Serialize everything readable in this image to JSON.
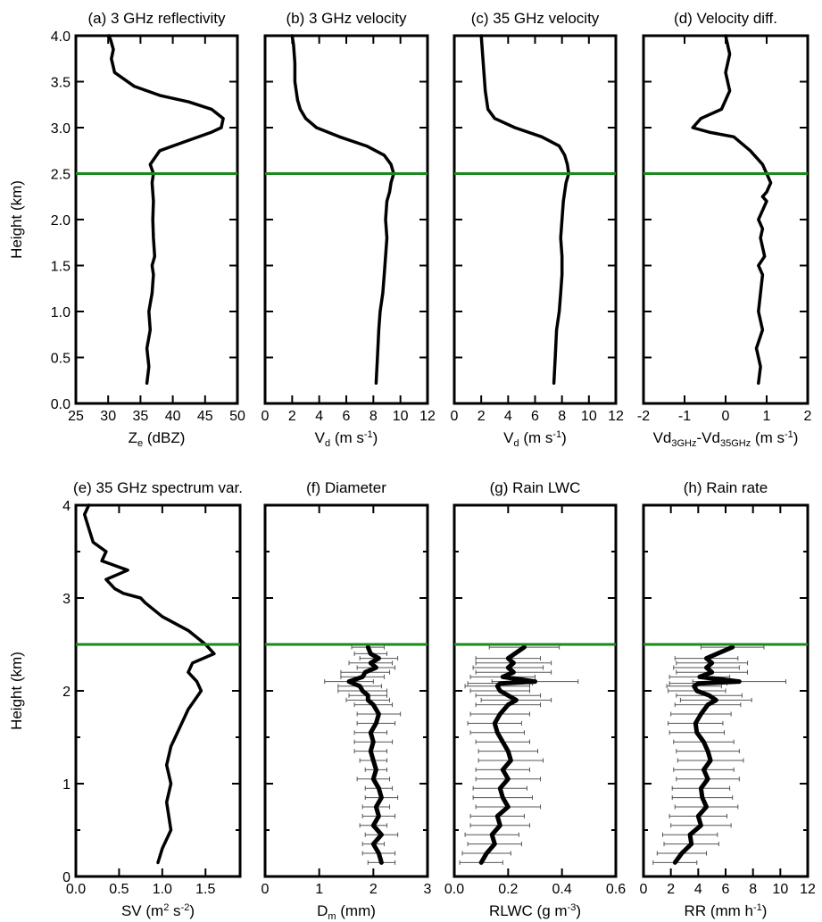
{
  "figure": {
    "ref_height_km": 2.5,
    "ref_line_color": "#1a8a1a",
    "profile_color": "#000000"
  },
  "chart_data": [
    {
      "panel": "a",
      "type": "line",
      "title": "(a) 3 GHz  reflectivity",
      "xlabel_parts": [
        {
          "t": "Z"
        },
        {
          "t": "e",
          "s": "sub"
        },
        {
          "t": " (dBZ)"
        }
      ],
      "ylabel": "Height (km)",
      "xlim": [
        25,
        50
      ],
      "ylim": [
        0,
        4
      ],
      "xticks": [
        25,
        30,
        35,
        40,
        45,
        50
      ],
      "xtick_labels": [
        "25",
        "30",
        "35",
        "40",
        "45",
        "50"
      ],
      "yticks": [
        0,
        0.5,
        1.0,
        1.5,
        2.0,
        2.5,
        3.0,
        3.5,
        4.0
      ],
      "ytick_labels": [
        "0.0",
        "0.5",
        "1.0",
        "1.5",
        "2.0",
        "2.5",
        "3.0",
        "3.5",
        "4.0"
      ],
      "series": [
        {
          "x": [
            36.0,
            36.3,
            36.0,
            36.5,
            36.3,
            36.8,
            37.0,
            36.8,
            37.2,
            37.0,
            36.9,
            37.0,
            36.8,
            37.0,
            36.5,
            38.0,
            42.0,
            46.0,
            47.5,
            47.8,
            46.0,
            42.5,
            38.0,
            34.0,
            31.0,
            30.5,
            30.8,
            30.4,
            30.1
          ],
          "y": [
            0.22,
            0.4,
            0.6,
            0.8,
            1.0,
            1.2,
            1.4,
            1.5,
            1.6,
            1.8,
            2.0,
            2.2,
            2.4,
            2.5,
            2.6,
            2.75,
            2.85,
            2.95,
            3.0,
            3.1,
            3.2,
            3.28,
            3.35,
            3.45,
            3.6,
            3.75,
            3.85,
            3.95,
            4.0
          ]
        }
      ]
    },
    {
      "panel": "b",
      "type": "line",
      "title": "(b) 3 GHz velocity",
      "xlabel_parts": [
        {
          "t": "V"
        },
        {
          "t": "d",
          "s": "sub"
        },
        {
          "t": " (m s"
        },
        {
          "t": "-1",
          "s": "sup"
        },
        {
          "t": ")"
        }
      ],
      "xlim": [
        0,
        12
      ],
      "ylim": [
        0,
        4
      ],
      "xticks": [
        0,
        2,
        4,
        6,
        8,
        10,
        12
      ],
      "xtick_labels": [
        "0",
        "2",
        "4",
        "6",
        "8",
        "10",
        "12"
      ],
      "yticks": [
        0,
        0.5,
        1.0,
        1.5,
        2.0,
        2.5,
        3.0,
        3.5,
        4.0
      ],
      "series": [
        {
          "x": [
            8.2,
            8.3,
            8.4,
            8.5,
            8.7,
            8.8,
            8.9,
            9.0,
            8.9,
            9.0,
            9.2,
            9.3,
            9.5,
            9.3,
            8.8,
            7.5,
            5.5,
            3.8,
            3.0,
            2.6,
            2.4,
            2.2,
            2.2,
            2.1,
            2.0
          ],
          "y": [
            0.22,
            0.5,
            0.8,
            1.0,
            1.2,
            1.4,
            1.6,
            1.8,
            2.0,
            2.2,
            2.3,
            2.4,
            2.5,
            2.6,
            2.7,
            2.8,
            2.9,
            3.0,
            3.1,
            3.2,
            3.3,
            3.5,
            3.7,
            3.9,
            4.0
          ]
        }
      ]
    },
    {
      "panel": "c",
      "type": "line",
      "title": "(c) 35 GHz velocity",
      "xlabel_parts": [
        {
          "t": "V"
        },
        {
          "t": "d",
          "s": "sub"
        },
        {
          "t": " (m s"
        },
        {
          "t": "-1",
          "s": "sup"
        },
        {
          "t": ")"
        }
      ],
      "xlim": [
        0,
        12
      ],
      "ylim": [
        0,
        4
      ],
      "xticks": [
        0,
        2,
        4,
        6,
        8,
        10,
        12
      ],
      "xtick_labels": [
        "0",
        "2",
        "4",
        "6",
        "8",
        "10",
        "12"
      ],
      "yticks": [
        0,
        0.5,
        1.0,
        1.5,
        2.0,
        2.5,
        3.0,
        3.5,
        4.0
      ],
      "series": [
        {
          "x": [
            7.4,
            7.5,
            7.6,
            7.8,
            7.9,
            8.0,
            8.0,
            7.9,
            8.0,
            8.1,
            8.3,
            8.5,
            8.4,
            8.2,
            7.8,
            6.5,
            4.5,
            3.0,
            2.5,
            2.3,
            2.2,
            2.1,
            2.0
          ],
          "y": [
            0.22,
            0.5,
            0.8,
            1.0,
            1.2,
            1.4,
            1.6,
            1.8,
            2.0,
            2.2,
            2.4,
            2.5,
            2.6,
            2.7,
            2.8,
            2.9,
            3.0,
            3.1,
            3.2,
            3.4,
            3.6,
            3.8,
            4.0
          ]
        }
      ]
    },
    {
      "panel": "d",
      "type": "line",
      "title": "(d) Velocity diff.",
      "xlabel_parts": [
        {
          "t": "Vd"
        },
        {
          "t": "3GHz",
          "s": "sub"
        },
        {
          "t": "-Vd"
        },
        {
          "t": "35GHz",
          "s": "sub"
        },
        {
          "t": " (m s"
        },
        {
          "t": "-1",
          "s": "sup"
        },
        {
          "t": ")"
        }
      ],
      "xlim": [
        -2,
        2
      ],
      "ylim": [
        0,
        4
      ],
      "xticks": [
        -2,
        -1,
        0,
        1,
        2
      ],
      "xtick_labels": [
        "-2",
        "-1",
        "0",
        "1",
        "2"
      ],
      "yticks": [
        0,
        0.5,
        1.0,
        1.5,
        2.0,
        2.5,
        3.0,
        3.5,
        4.0
      ],
      "series": [
        {
          "x": [
            0.8,
            0.85,
            0.75,
            0.9,
            0.8,
            0.85,
            0.9,
            0.8,
            0.95,
            0.85,
            0.9,
            0.8,
            0.9,
            1.0,
            0.9,
            1.0,
            1.1,
            1.0,
            0.9,
            0.6,
            0.2,
            -0.4,
            -0.8,
            -0.6,
            -0.1,
            0.1,
            0.0,
            0.1,
            0.0
          ],
          "y": [
            0.22,
            0.4,
            0.6,
            0.8,
            1.0,
            1.2,
            1.4,
            1.5,
            1.6,
            1.8,
            1.9,
            2.0,
            2.1,
            2.2,
            2.25,
            2.3,
            2.4,
            2.5,
            2.6,
            2.75,
            2.9,
            2.95,
            3.0,
            3.1,
            3.2,
            3.4,
            3.6,
            3.8,
            4.0
          ]
        }
      ]
    },
    {
      "panel": "e",
      "type": "line",
      "title": "(e) 35 GHz  spectrum var.",
      "xlabel_parts": [
        {
          "t": "SV (m"
        },
        {
          "t": "2",
          "s": "sup"
        },
        {
          "t": " s"
        },
        {
          "t": "-2",
          "s": "sup"
        },
        {
          "t": ")"
        }
      ],
      "ylabel": "Height (km)",
      "xlim": [
        0,
        1.9
      ],
      "ylim": [
        0,
        4
      ],
      "xticks": [
        0,
        0.5,
        1.0,
        1.5
      ],
      "xtick_labels": [
        "0.0",
        "0.5",
        "1.0",
        "1.5"
      ],
      "yticks": [
        0,
        1,
        2,
        3,
        4
      ],
      "ytick_labels": [
        "0",
        "1",
        "2",
        "3",
        "4"
      ],
      "yminor": [
        0.5,
        1.5,
        2.5,
        3.5
      ],
      "series": [
        {
          "x": [
            0.95,
            1.0,
            1.1,
            1.05,
            1.1,
            1.05,
            1.1,
            1.2,
            1.3,
            1.45,
            1.4,
            1.3,
            1.35,
            1.6,
            1.5,
            1.3,
            1.0,
            0.8,
            0.75,
            0.55,
            0.45,
            0.35,
            0.6,
            0.45,
            0.3,
            0.35,
            0.2,
            0.15,
            0.1,
            0.15
          ],
          "y": [
            0.15,
            0.3,
            0.5,
            0.8,
            1.0,
            1.2,
            1.4,
            1.6,
            1.8,
            2.0,
            2.1,
            2.2,
            2.3,
            2.4,
            2.5,
            2.65,
            2.8,
            2.95,
            3.0,
            3.05,
            3.1,
            3.2,
            3.3,
            3.35,
            3.4,
            3.5,
            3.6,
            3.75,
            3.9,
            4.0
          ]
        }
      ]
    },
    {
      "panel": "f",
      "type": "line",
      "title": "(f) Diameter",
      "xlabel_parts": [
        {
          "t": "D"
        },
        {
          "t": "m",
          "s": "sub"
        },
        {
          "t": " (mm)"
        }
      ],
      "xlim": [
        0,
        3
      ],
      "ylim": [
        0,
        4
      ],
      "xticks": [
        0,
        1,
        2,
        3
      ],
      "xtick_labels": [
        "0",
        "1",
        "2",
        "3"
      ],
      "yticks": [
        0,
        1,
        2,
        3,
        4
      ],
      "yminor": [
        0.5,
        1.5,
        2.5,
        3.5
      ],
      "series": [
        {
          "x": [
            2.15,
            2.1,
            2.0,
            2.15,
            2.0,
            2.1,
            2.05,
            2.15,
            2.1,
            2.0,
            2.05,
            2.0,
            1.95,
            2.0,
            1.95,
            2.05,
            2.1,
            2.0,
            1.9,
            1.9,
            1.8,
            1.75,
            1.55,
            1.8,
            1.85,
            2.05,
            1.95,
            2.1,
            1.95,
            1.9
          ],
          "y": [
            0.15,
            0.25,
            0.35,
            0.45,
            0.55,
            0.65,
            0.75,
            0.85,
            0.95,
            1.05,
            1.15,
            1.25,
            1.35,
            1.45,
            1.55,
            1.65,
            1.75,
            1.85,
            1.9,
            1.95,
            2.0,
            2.05,
            2.1,
            2.15,
            2.2,
            2.25,
            2.3,
            2.35,
            2.4,
            2.47
          ],
          "err": [
            0.25,
            0.3,
            0.2,
            0.3,
            0.25,
            0.3,
            0.25,
            0.3,
            0.25,
            0.3,
            0.2,
            0.25,
            0.3,
            0.35,
            0.3,
            0.35,
            0.4,
            0.35,
            0.4,
            0.35,
            0.45,
            0.4,
            0.45,
            0.4,
            0.45,
            0.35,
            0.4,
            0.35,
            0.3,
            0.3
          ]
        }
      ]
    },
    {
      "panel": "g",
      "type": "line",
      "title": "(g) Rain LWC",
      "xlabel_parts": [
        {
          "t": "RLWC (g m"
        },
        {
          "t": "-3",
          "s": "sup"
        },
        {
          "t": ")"
        }
      ],
      "xlim": [
        0,
        0.6
      ],
      "ylim": [
        0,
        4
      ],
      "xticks": [
        0,
        0.2,
        0.4,
        0.6
      ],
      "xtick_labels": [
        "0.0",
        "0.2",
        "0.4",
        "0.6"
      ],
      "yticks": [
        0,
        1,
        2,
        3,
        4
      ],
      "yminor": [
        0.5,
        1.5,
        2.5,
        3.5
      ],
      "series": [
        {
          "x": [
            0.1,
            0.12,
            0.15,
            0.14,
            0.17,
            0.16,
            0.2,
            0.18,
            0.17,
            0.2,
            0.18,
            0.21,
            0.2,
            0.18,
            0.16,
            0.15,
            0.17,
            0.2,
            0.23,
            0.2,
            0.17,
            0.16,
            0.17,
            0.3,
            0.18,
            0.22,
            0.2,
            0.22,
            0.2,
            0.26
          ],
          "y": [
            0.15,
            0.25,
            0.35,
            0.45,
            0.55,
            0.65,
            0.75,
            0.85,
            0.95,
            1.05,
            1.15,
            1.25,
            1.35,
            1.45,
            1.55,
            1.65,
            1.75,
            1.85,
            1.9,
            1.95,
            2.0,
            2.05,
            2.08,
            2.1,
            2.15,
            2.2,
            2.25,
            2.3,
            2.35,
            2.47
          ],
          "err": [
            0.08,
            0.09,
            0.1,
            0.1,
            0.11,
            0.1,
            0.12,
            0.11,
            0.1,
            0.12,
            0.1,
            0.12,
            0.11,
            0.1,
            0.1,
            0.1,
            0.11,
            0.12,
            0.13,
            0.12,
            0.11,
            0.12,
            0.12,
            0.16,
            0.12,
            0.14,
            0.13,
            0.14,
            0.12,
            0.13
          ]
        }
      ]
    },
    {
      "panel": "h",
      "type": "line",
      "title": "(h) Rain rate",
      "xlabel_parts": [
        {
          "t": "RR (mm h"
        },
        {
          "t": "-1",
          "s": "sup"
        },
        {
          "t": ")"
        }
      ],
      "xlim": [
        0,
        12
      ],
      "ylim": [
        0,
        4
      ],
      "xticks": [
        0,
        2,
        4,
        6,
        8,
        10,
        12
      ],
      "xtick_labels": [
        "0",
        "2",
        "4",
        "6",
        "8",
        "10",
        "12"
      ],
      "yticks": [
        0,
        1,
        2,
        3,
        4
      ],
      "yminor": [
        0.5,
        1.5,
        2.5,
        3.5
      ],
      "series": [
        {
          "x": [
            2.3,
            2.8,
            3.5,
            3.4,
            4.2,
            4.0,
            4.6,
            4.3,
            4.2,
            4.7,
            4.4,
            4.9,
            4.7,
            4.4,
            3.9,
            3.8,
            4.2,
            4.7,
            5.3,
            4.8,
            3.9,
            3.7,
            4.0,
            7.0,
            4.1,
            5.0,
            4.6,
            5.0,
            4.6,
            6.5
          ],
          "y": [
            0.15,
            0.25,
            0.35,
            0.45,
            0.55,
            0.65,
            0.75,
            0.85,
            0.95,
            1.05,
            1.15,
            1.25,
            1.35,
            1.45,
            1.55,
            1.65,
            1.75,
            1.85,
            1.9,
            1.95,
            2.0,
            2.05,
            2.08,
            2.1,
            2.15,
            2.2,
            2.25,
            2.3,
            2.35,
            2.47
          ],
          "err": [
            1.6,
            1.8,
            2.0,
            2.0,
            2.2,
            2.1,
            2.3,
            2.2,
            2.1,
            2.3,
            2.2,
            2.4,
            2.3,
            2.2,
            2.0,
            2.0,
            2.2,
            2.4,
            2.6,
            2.4,
            2.1,
            2.0,
            2.1,
            3.4,
            2.2,
            2.6,
            2.4,
            2.6,
            2.3,
            2.3
          ]
        }
      ]
    }
  ]
}
